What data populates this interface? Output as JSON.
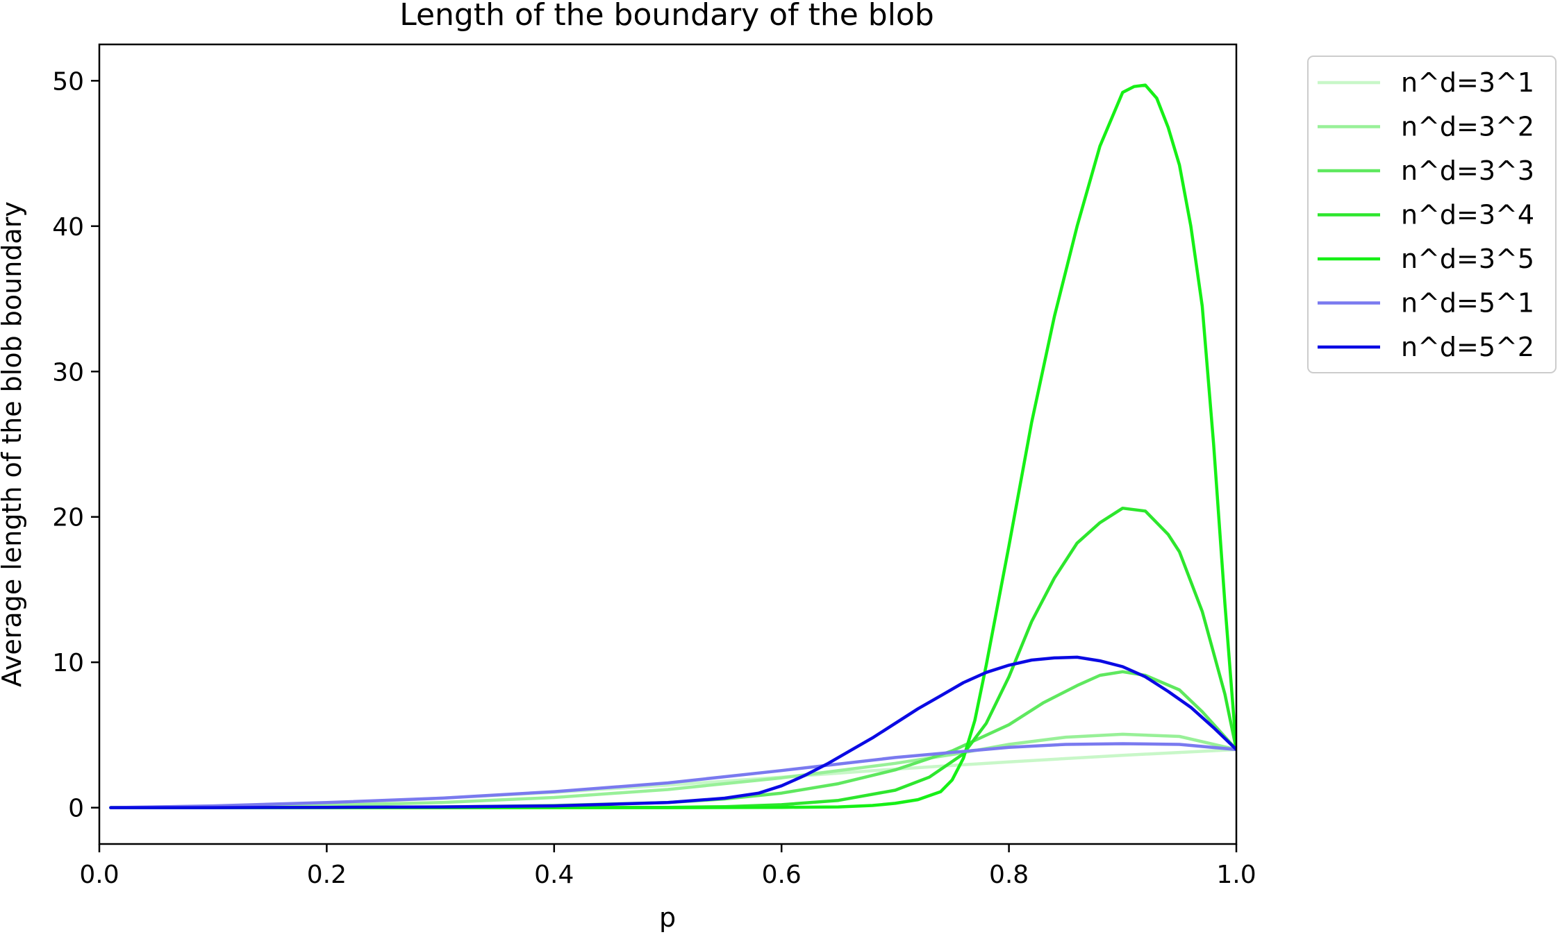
{
  "chart_data": {
    "type": "line",
    "title": "Length of the boundary of the blob",
    "xlabel": "p",
    "ylabel": "Average length of the blob boundary",
    "xlim": [
      0.0,
      1.0
    ],
    "ylim": [
      -2.5,
      52.5
    ],
    "xticks": [
      0.0,
      0.2,
      0.4,
      0.6,
      0.8,
      1.0
    ],
    "xtick_labels": [
      "0.0",
      "0.2",
      "0.4",
      "0.6",
      "0.8",
      "1.0"
    ],
    "yticks": [
      0,
      10,
      20,
      30,
      40,
      50
    ],
    "ytick_labels": [
      "0",
      "10",
      "20",
      "30",
      "40",
      "50"
    ],
    "grid": false,
    "legend_position": "outside-top-right",
    "series": [
      {
        "name": "n^d=3^1",
        "color": "#c8f7c8",
        "points": [
          [
            0.01,
            0.0
          ],
          [
            0.1,
            0.1
          ],
          [
            0.2,
            0.3
          ],
          [
            0.3,
            0.65
          ],
          [
            0.4,
            1.05
          ],
          [
            0.5,
            1.55
          ],
          [
            0.6,
            2.1
          ],
          [
            0.7,
            2.65
          ],
          [
            0.8,
            3.15
          ],
          [
            0.9,
            3.6
          ],
          [
            1.0,
            4.0
          ]
        ]
      },
      {
        "name": "n^d=3^2",
        "color": "#98f098",
        "points": [
          [
            0.01,
            0.0
          ],
          [
            0.1,
            0.05
          ],
          [
            0.2,
            0.15
          ],
          [
            0.3,
            0.35
          ],
          [
            0.4,
            0.7
          ],
          [
            0.5,
            1.25
          ],
          [
            0.6,
            2.05
          ],
          [
            0.7,
            3.05
          ],
          [
            0.75,
            3.65
          ],
          [
            0.8,
            4.35
          ],
          [
            0.85,
            4.85
          ],
          [
            0.9,
            5.05
          ],
          [
            0.95,
            4.9
          ],
          [
            1.0,
            4.0
          ]
        ]
      },
      {
        "name": "n^d=3^3",
        "color": "#5fe85f",
        "points": [
          [
            0.01,
            0.0
          ],
          [
            0.1,
            0.0
          ],
          [
            0.2,
            0.02
          ],
          [
            0.3,
            0.05
          ],
          [
            0.4,
            0.15
          ],
          [
            0.5,
            0.35
          ],
          [
            0.55,
            0.6
          ],
          [
            0.6,
            1.0
          ],
          [
            0.65,
            1.65
          ],
          [
            0.7,
            2.6
          ],
          [
            0.75,
            3.9
          ],
          [
            0.8,
            5.7
          ],
          [
            0.83,
            7.2
          ],
          [
            0.86,
            8.4
          ],
          [
            0.88,
            9.1
          ],
          [
            0.9,
            9.35
          ],
          [
            0.92,
            9.1
          ],
          [
            0.95,
            8.1
          ],
          [
            0.97,
            6.6
          ],
          [
            1.0,
            4.0
          ]
        ]
      },
      {
        "name": "n^d=3^4",
        "color": "#2de62d",
        "points": [
          [
            0.01,
            0.0
          ],
          [
            0.3,
            0.0
          ],
          [
            0.5,
            0.02
          ],
          [
            0.55,
            0.07
          ],
          [
            0.6,
            0.2
          ],
          [
            0.65,
            0.5
          ],
          [
            0.7,
            1.2
          ],
          [
            0.73,
            2.1
          ],
          [
            0.76,
            3.7
          ],
          [
            0.78,
            5.8
          ],
          [
            0.8,
            9.0
          ],
          [
            0.82,
            12.8
          ],
          [
            0.84,
            15.8
          ],
          [
            0.86,
            18.2
          ],
          [
            0.88,
            19.6
          ],
          [
            0.9,
            20.6
          ],
          [
            0.92,
            20.4
          ],
          [
            0.94,
            18.8
          ],
          [
            0.95,
            17.6
          ],
          [
            0.97,
            13.5
          ],
          [
            0.99,
            7.8
          ],
          [
            1.0,
            4.0
          ]
        ]
      },
      {
        "name": "n^d=3^5",
        "color": "#16f016",
        "points": [
          [
            0.01,
            0.0
          ],
          [
            0.5,
            0.0
          ],
          [
            0.6,
            0.02
          ],
          [
            0.65,
            0.05
          ],
          [
            0.68,
            0.15
          ],
          [
            0.7,
            0.3
          ],
          [
            0.72,
            0.55
          ],
          [
            0.74,
            1.1
          ],
          [
            0.75,
            1.9
          ],
          [
            0.76,
            3.4
          ],
          [
            0.77,
            6.0
          ],
          [
            0.78,
            9.8
          ],
          [
            0.8,
            18.0
          ],
          [
            0.82,
            26.5
          ],
          [
            0.84,
            33.8
          ],
          [
            0.86,
            40.0
          ],
          [
            0.88,
            45.5
          ],
          [
            0.9,
            49.2
          ],
          [
            0.91,
            49.6
          ],
          [
            0.92,
            49.7
          ],
          [
            0.93,
            48.8
          ],
          [
            0.94,
            46.8
          ],
          [
            0.95,
            44.2
          ],
          [
            0.96,
            40.0
          ],
          [
            0.97,
            34.5
          ],
          [
            0.98,
            25.0
          ],
          [
            0.99,
            14.0
          ],
          [
            1.0,
            4.0
          ]
        ]
      },
      {
        "name": "n^d=5^1",
        "color": "#7a7aef",
        "points": [
          [
            0.01,
            0.0
          ],
          [
            0.1,
            0.12
          ],
          [
            0.2,
            0.35
          ],
          [
            0.3,
            0.65
          ],
          [
            0.4,
            1.1
          ],
          [
            0.5,
            1.7
          ],
          [
            0.6,
            2.55
          ],
          [
            0.7,
            3.45
          ],
          [
            0.8,
            4.15
          ],
          [
            0.85,
            4.35
          ],
          [
            0.9,
            4.4
          ],
          [
            0.95,
            4.35
          ],
          [
            1.0,
            4.0
          ]
        ]
      },
      {
        "name": "n^d=5^2",
        "color": "#0a0ae3",
        "points": [
          [
            0.01,
            0.0
          ],
          [
            0.1,
            0.0
          ],
          [
            0.2,
            0.02
          ],
          [
            0.3,
            0.05
          ],
          [
            0.4,
            0.12
          ],
          [
            0.5,
            0.35
          ],
          [
            0.55,
            0.65
          ],
          [
            0.58,
            1.0
          ],
          [
            0.6,
            1.5
          ],
          [
            0.62,
            2.2
          ],
          [
            0.64,
            3.0
          ],
          [
            0.66,
            3.9
          ],
          [
            0.68,
            4.8
          ],
          [
            0.7,
            5.8
          ],
          [
            0.72,
            6.8
          ],
          [
            0.74,
            7.7
          ],
          [
            0.76,
            8.6
          ],
          [
            0.78,
            9.3
          ],
          [
            0.8,
            9.8
          ],
          [
            0.82,
            10.15
          ],
          [
            0.84,
            10.3
          ],
          [
            0.86,
            10.35
          ],
          [
            0.88,
            10.1
          ],
          [
            0.9,
            9.7
          ],
          [
            0.92,
            9.0
          ],
          [
            0.94,
            8.0
          ],
          [
            0.96,
            6.9
          ],
          [
            0.98,
            5.5
          ],
          [
            1.0,
            4.0
          ]
        ]
      }
    ]
  }
}
